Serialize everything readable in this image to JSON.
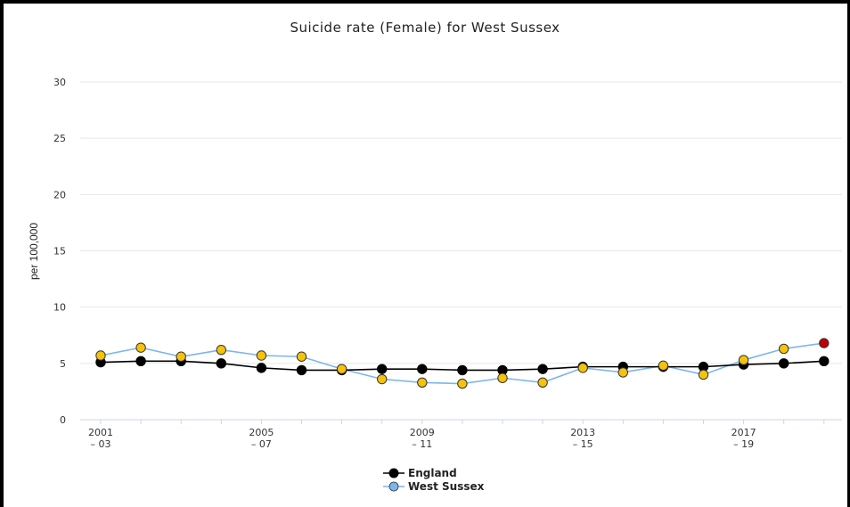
{
  "chart_data": {
    "type": "line",
    "title": "Suicide rate (Female) for West Sussex",
    "xlabel": "",
    "ylabel": "per 100,000",
    "ylim": [
      0,
      30
    ],
    "yticks": [
      0,
      5,
      10,
      15,
      20,
      25,
      30
    ],
    "grid": true,
    "legend_position": "bottom-center",
    "categories": [
      "2001 – 03",
      "2002 – 04",
      "2003 – 05",
      "2004 – 06",
      "2005 – 07",
      "2006 – 08",
      "2007 – 09",
      "2008 – 10",
      "2009 – 11",
      "2010 – 12",
      "2011 – 13",
      "2012 – 14",
      "2013 – 15",
      "2014 – 16",
      "2015 – 17",
      "2016 – 18",
      "2017 – 19",
      "2018 – 20",
      "2019 – 21"
    ],
    "xtick_labels": [
      {
        "index": 0,
        "top": "2001",
        "bottom": "– 03"
      },
      {
        "index": 4,
        "top": "2005",
        "bottom": "– 07"
      },
      {
        "index": 8,
        "top": "2009",
        "bottom": "– 11"
      },
      {
        "index": 12,
        "top": "2013",
        "bottom": "– 15"
      },
      {
        "index": 16,
        "top": "2017",
        "bottom": "– 19"
      }
    ],
    "series": [
      {
        "name": "England",
        "line_color": "#000000",
        "marker_color": "#000000",
        "values": [
          5.1,
          5.2,
          5.2,
          5.0,
          4.6,
          4.4,
          4.4,
          4.5,
          4.5,
          4.4,
          4.4,
          4.5,
          4.7,
          4.7,
          4.7,
          4.7,
          4.9,
          5.0,
          5.2
        ]
      },
      {
        "name": "West Sussex",
        "line_color": "#7cb5ec",
        "marker_color": "#f4c30a",
        "last_marker_color": "#c00000",
        "values": [
          5.7,
          6.4,
          5.6,
          6.2,
          5.7,
          5.6,
          4.5,
          3.6,
          3.3,
          3.2,
          3.7,
          3.3,
          4.6,
          4.2,
          4.8,
          4.0,
          5.3,
          6.3,
          6.8
        ]
      }
    ]
  },
  "legend": {
    "items": [
      {
        "label": "England",
        "line_color": "#000000",
        "marker_color": "#000000"
      },
      {
        "label": "West Sussex",
        "line_color": "#7cb5ec",
        "marker_color": "#7cb5ec"
      }
    ]
  }
}
